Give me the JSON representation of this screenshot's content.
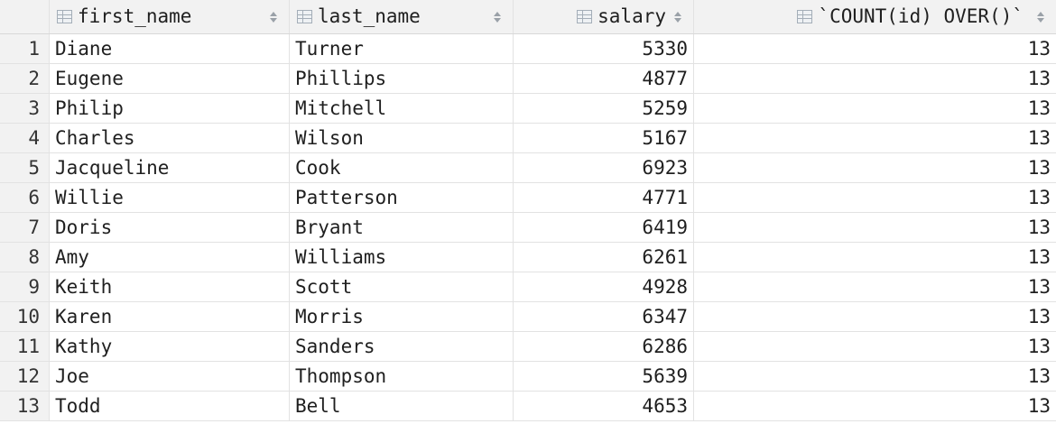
{
  "columns": [
    {
      "label": "first_name",
      "icon": "column-icon"
    },
    {
      "label": "last_name",
      "icon": "column-icon"
    },
    {
      "label": "salary",
      "icon": "column-icon"
    },
    {
      "label": "`COUNT(id) OVER()`",
      "icon": "column-icon"
    }
  ],
  "rows": [
    {
      "n": "1",
      "first_name": "Diane",
      "last_name": "Turner",
      "salary": "5330",
      "count": "13"
    },
    {
      "n": "2",
      "first_name": "Eugene",
      "last_name": "Phillips",
      "salary": "4877",
      "count": "13"
    },
    {
      "n": "3",
      "first_name": "Philip",
      "last_name": "Mitchell",
      "salary": "5259",
      "count": "13"
    },
    {
      "n": "4",
      "first_name": "Charles",
      "last_name": "Wilson",
      "salary": "5167",
      "count": "13"
    },
    {
      "n": "5",
      "first_name": "Jacqueline",
      "last_name": "Cook",
      "salary": "6923",
      "count": "13"
    },
    {
      "n": "6",
      "first_name": "Willie",
      "last_name": "Patterson",
      "salary": "4771",
      "count": "13"
    },
    {
      "n": "7",
      "first_name": "Doris",
      "last_name": "Bryant",
      "salary": "6419",
      "count": "13"
    },
    {
      "n": "8",
      "first_name": "Amy",
      "last_name": "Williams",
      "salary": "6261",
      "count": "13"
    },
    {
      "n": "9",
      "first_name": "Keith",
      "last_name": "Scott",
      "salary": "4928",
      "count": "13"
    },
    {
      "n": "10",
      "first_name": "Karen",
      "last_name": "Morris",
      "salary": "6347",
      "count": "13"
    },
    {
      "n": "11",
      "first_name": "Kathy",
      "last_name": "Sanders",
      "salary": "6286",
      "count": "13"
    },
    {
      "n": "12",
      "first_name": "Joe",
      "last_name": "Thompson",
      "salary": "5639",
      "count": "13"
    },
    {
      "n": "13",
      "first_name": "Todd",
      "last_name": "Bell",
      "salary": "4653",
      "count": "13"
    }
  ]
}
